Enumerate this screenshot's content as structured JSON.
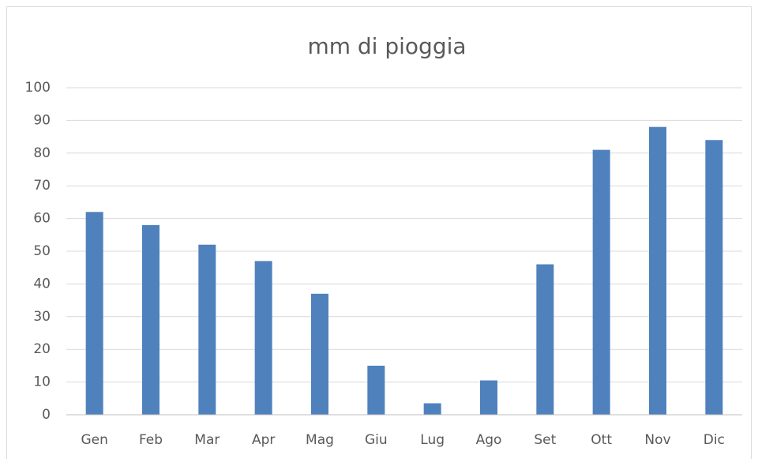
{
  "chart_data": {
    "type": "bar",
    "title": "mm di pioggia",
    "categories": [
      "Gen",
      "Feb",
      "Mar",
      "Apr",
      "Mag",
      "Giu",
      "Lug",
      "Ago",
      "Set",
      "Ott",
      "Nov",
      "Dic"
    ],
    "values": [
      62,
      58,
      52,
      47,
      37,
      15,
      3.5,
      10.5,
      46,
      81,
      88,
      84
    ],
    "color": "#4f81bd",
    "ylim": [
      0,
      100
    ],
    "yticks": [
      0,
      10,
      20,
      30,
      40,
      50,
      60,
      70,
      80,
      90,
      100
    ],
    "grid": true
  }
}
